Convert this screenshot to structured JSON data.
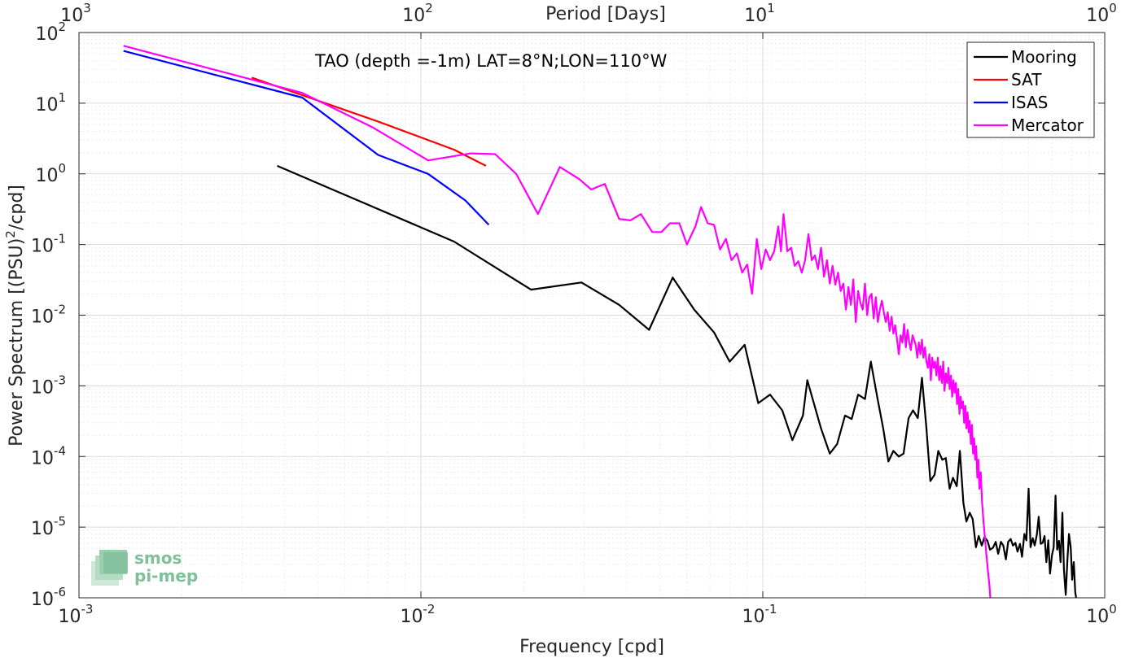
{
  "chart_data": {
    "type": "line",
    "title": "",
    "annotation": "TAO (depth =-1m) LAT=8°N;LON=110°W",
    "xlabel": "Frequency [cpd]",
    "ylabel_main": "Power Spectrum [(PSU)",
    "ylabel_sup": "2",
    "ylabel_tail": "/cpd]",
    "top_xlabel": "Period [Days]",
    "xscale": "log",
    "yscale": "log",
    "xlim": [
      0.001,
      1
    ],
    "ylim": [
      1e-06,
      100
    ],
    "grid": true,
    "legend_position": "top-right",
    "x_ticks": [
      {
        "value": 0.001,
        "base": "10",
        "exp": "-3"
      },
      {
        "value": 0.01,
        "base": "10",
        "exp": "-2"
      },
      {
        "value": 0.1,
        "base": "10",
        "exp": "-1"
      },
      {
        "value": 1,
        "base": "10",
        "exp": "0"
      }
    ],
    "y_ticks": [
      {
        "value": 1e-06,
        "base": "10",
        "exp": "-6"
      },
      {
        "value": 1e-05,
        "base": "10",
        "exp": "-5"
      },
      {
        "value": 0.0001,
        "base": "10",
        "exp": "-4"
      },
      {
        "value": 0.001,
        "base": "10",
        "exp": "-3"
      },
      {
        "value": 0.01,
        "base": "10",
        "exp": "-2"
      },
      {
        "value": 0.1,
        "base": "10",
        "exp": "-1"
      },
      {
        "value": 1,
        "base": "10",
        "exp": "0"
      },
      {
        "value": 10,
        "base": "10",
        "exp": "1"
      },
      {
        "value": 100,
        "base": "10",
        "exp": "2"
      }
    ],
    "top_ticks": [
      {
        "value": 0.001,
        "base": "10",
        "exp": "3"
      },
      {
        "value": 0.01,
        "base": "10",
        "exp": "2"
      },
      {
        "value": 0.1,
        "base": "10",
        "exp": "1"
      },
      {
        "value": 1,
        "base": "10",
        "exp": "0"
      }
    ],
    "series": [
      {
        "name": "Mooring",
        "color": "#000000",
        "points": [
          [
            0.0038,
            1.3
          ],
          [
            0.0125,
            0.11
          ],
          [
            0.021,
            0.023
          ],
          [
            0.0295,
            0.029
          ],
          [
            0.038,
            0.014
          ],
          [
            0.0465,
            0.0062
          ],
          [
            0.0545,
            0.034
          ],
          [
            0.063,
            0.012
          ],
          [
            0.072,
            0.0057
          ],
          [
            0.08,
            0.0022
          ],
          [
            0.0885,
            0.0038
          ],
          [
            0.097,
            0.00057
          ],
          [
            0.105,
            0.00075
          ],
          [
            0.114,
            0.00045
          ],
          [
            0.122,
            0.00017
          ],
          [
            0.131,
            0.00038
          ],
          [
            0.135,
            0.0012
          ],
          [
            0.148,
            0.00025
          ],
          [
            0.157,
            0.00011
          ],
          [
            0.165,
            0.00015
          ],
          [
            0.174,
            0.00038
          ],
          [
            0.182,
            0.00034
          ],
          [
            0.19,
            0.00075
          ],
          [
            0.199,
            0.00065
          ],
          [
            0.207,
            0.0022
          ],
          [
            0.216,
            0.0007
          ],
          [
            0.225,
            0.00025
          ],
          [
            0.233,
            8.5e-05
          ],
          [
            0.241,
            0.00012
          ],
          [
            0.25,
            0.0001
          ],
          [
            0.258,
            0.00011
          ],
          [
            0.267,
            0.00035
          ],
          [
            0.275,
            0.00045
          ],
          [
            0.284,
            0.00035
          ],
          [
            0.292,
            0.0013
          ],
          [
            0.301,
            0.00025
          ],
          [
            0.309,
            4.5e-05
          ],
          [
            0.318,
            5.5e-05
          ],
          [
            0.326,
            0.00012
          ],
          [
            0.335,
            9e-05
          ],
          [
            0.343,
            9.5e-05
          ],
          [
            0.352,
            3.5e-05
          ],
          [
            0.36,
            5e-05
          ],
          [
            0.369,
            3.8e-05
          ],
          [
            0.377,
            0.00012
          ],
          [
            0.386,
            2.2e-05
          ],
          [
            0.394,
            1.2e-05
          ],
          [
            0.403,
            1.6e-05
          ],
          [
            0.411,
            1.3e-05
          ],
          [
            0.42,
            5.2e-06
          ],
          [
            0.428,
            7.5e-06
          ],
          [
            0.437,
            5.5e-06
          ],
          [
            0.445,
            7.2e-06
          ],
          [
            0.454,
            6.4e-06
          ],
          [
            0.462,
            4.8e-06
          ],
          [
            0.471,
            5.1e-06
          ],
          [
            0.48,
            6.2e-06
          ],
          [
            0.488,
            4.2e-06
          ],
          [
            0.497,
            6.2e-06
          ],
          [
            0.505,
            5.5e-06
          ],
          [
            0.514,
            3.5e-06
          ],
          [
            0.522,
            6.2e-06
          ],
          [
            0.531,
            6.8e-06
          ],
          [
            0.539,
            5.5e-06
          ],
          [
            0.548,
            6e-06
          ],
          [
            0.556,
            4.5e-06
          ],
          [
            0.565,
            5.8e-06
          ],
          [
            0.573,
            3.8e-06
          ],
          [
            0.582,
            8e-06
          ],
          [
            0.59,
            6.5e-06
          ],
          [
            0.599,
            3.5e-05
          ],
          [
            0.607,
            5.2e-06
          ],
          [
            0.616,
            7e-06
          ],
          [
            0.624,
            5.5e-06
          ],
          [
            0.633,
            7.8e-06
          ],
          [
            0.641,
            1.4e-05
          ],
          [
            0.65,
            5.8e-06
          ],
          [
            0.658,
            6e-06
          ],
          [
            0.667,
            7.5e-06
          ],
          [
            0.675,
            3.2e-06
          ],
          [
            0.684,
            6.5e-06
          ],
          [
            0.692,
            2.2e-06
          ],
          [
            0.701,
            4e-06
          ],
          [
            0.709,
            5.2e-06
          ],
          [
            0.718,
            2.8e-05
          ],
          [
            0.726,
            4.8e-06
          ],
          [
            0.735,
            6.4e-06
          ],
          [
            0.743,
            3.2e-06
          ],
          [
            0.752,
            1.6e-05
          ],
          [
            0.76,
            2.5e-06
          ],
          [
            0.769,
            1.1e-06
          ],
          [
            0.778,
            3.5e-06
          ],
          [
            0.786,
            8e-06
          ],
          [
            0.795,
            5.2e-06
          ],
          [
            0.803,
            1.8e-06
          ],
          [
            0.812,
            3.2e-06
          ],
          [
            0.82,
            1.2e-06
          ],
          [
            0.825,
            1e-06
          ]
        ]
      },
      {
        "name": "SAT",
        "color": "#ff0000",
        "points": [
          [
            0.0032,
            23
          ],
          [
            0.0045,
            13
          ],
          [
            0.0075,
            5.5
          ],
          [
            0.0125,
            2.2
          ],
          [
            0.0155,
            1.3
          ]
        ]
      },
      {
        "name": "ISAS",
        "color": "#0000ff",
        "points": [
          [
            0.00135,
            55
          ],
          [
            0.0045,
            12
          ],
          [
            0.0075,
            1.85
          ],
          [
            0.0105,
            1.0
          ],
          [
            0.0135,
            0.42
          ],
          [
            0.0158,
            0.19
          ]
        ]
      },
      {
        "name": "Mercator",
        "color": "#ff00ff",
        "points": [
          [
            0.00135,
            65
          ],
          [
            0.0045,
            14
          ],
          [
            0.0072,
            4.6
          ],
          [
            0.0105,
            1.55
          ],
          [
            0.014,
            1.95
          ],
          [
            0.0165,
            1.9
          ],
          [
            0.019,
            1.0
          ],
          [
            0.022,
            0.27
          ],
          [
            0.0255,
            1.25
          ],
          [
            0.029,
            0.85
          ],
          [
            0.0315,
            0.6
          ],
          [
            0.0345,
            0.72
          ],
          [
            0.038,
            0.23
          ],
          [
            0.041,
            0.22
          ],
          [
            0.044,
            0.27
          ],
          [
            0.0475,
            0.15
          ],
          [
            0.0505,
            0.15
          ],
          [
            0.0535,
            0.2
          ],
          [
            0.057,
            0.2
          ],
          [
            0.06,
            0.1
          ],
          [
            0.0635,
            0.18
          ],
          [
            0.066,
            0.34
          ],
          [
            0.069,
            0.2
          ],
          [
            0.072,
            0.19
          ],
          [
            0.075,
            0.085
          ],
          [
            0.078,
            0.12
          ],
          [
            0.081,
            0.06
          ],
          [
            0.084,
            0.075
          ],
          [
            0.087,
            0.04
          ],
          [
            0.09,
            0.052
          ],
          [
            0.093,
            0.02
          ],
          [
            0.096,
            0.12
          ],
          [
            0.099,
            0.045
          ],
          [
            0.102,
            0.085
          ],
          [
            0.105,
            0.06
          ],
          [
            0.108,
            0.08
          ],
          [
            0.111,
            0.18
          ],
          [
            0.113,
            0.08
          ],
          [
            0.115,
            0.27
          ],
          [
            0.118,
            0.08
          ],
          [
            0.121,
            0.09
          ],
          [
            0.124,
            0.05
          ],
          [
            0.127,
            0.058
          ],
          [
            0.13,
            0.04
          ],
          [
            0.133,
            0.06
          ],
          [
            0.136,
            0.14
          ],
          [
            0.139,
            0.06
          ],
          [
            0.142,
            0.07
          ],
          [
            0.145,
            0.045
          ],
          [
            0.148,
            0.09
          ],
          [
            0.151,
            0.035
          ],
          [
            0.154,
            0.06
          ],
          [
            0.157,
            0.028
          ],
          [
            0.16,
            0.05
          ],
          [
            0.163,
            0.027
          ],
          [
            0.166,
            0.04
          ],
          [
            0.169,
            0.022
          ],
          [
            0.172,
            0.028
          ],
          [
            0.175,
            0.012
          ],
          [
            0.178,
            0.025
          ],
          [
            0.181,
            0.014
          ],
          [
            0.184,
            0.032
          ],
          [
            0.187,
            0.008
          ],
          [
            0.19,
            0.022
          ],
          [
            0.193,
            0.015
          ],
          [
            0.196,
            0.012
          ],
          [
            0.199,
            0.028
          ],
          [
            0.202,
            0.01
          ],
          [
            0.205,
            0.018
          ],
          [
            0.208,
            0.02
          ],
          [
            0.211,
            0.009
          ],
          [
            0.214,
            0.018
          ],
          [
            0.217,
            0.008
          ],
          [
            0.22,
            0.012
          ],
          [
            0.223,
            0.016
          ],
          [
            0.226,
            0.011
          ],
          [
            0.229,
            0.008
          ],
          [
            0.232,
            0.011
          ],
          [
            0.235,
            0.006
          ],
          [
            0.238,
            0.0095
          ],
          [
            0.241,
            0.0055
          ],
          [
            0.244,
            0.0072
          ],
          [
            0.247,
            0.0045
          ],
          [
            0.25,
            0.0028
          ],
          [
            0.253,
            0.0052
          ],
          [
            0.256,
            0.0041
          ],
          [
            0.259,
            0.0075
          ],
          [
            0.262,
            0.0035
          ],
          [
            0.265,
            0.0062
          ],
          [
            0.268,
            0.0042
          ],
          [
            0.271,
            0.0032
          ],
          [
            0.274,
            0.0052
          ],
          [
            0.277,
            0.0045
          ],
          [
            0.28,
            0.0038
          ],
          [
            0.283,
            0.0025
          ],
          [
            0.286,
            0.0041
          ],
          [
            0.289,
            0.0028
          ],
          [
            0.292,
            0.0045
          ],
          [
            0.295,
            0.0025
          ],
          [
            0.298,
            0.0035
          ],
          [
            0.301,
            0.0022
          ],
          [
            0.304,
            0.0018
          ],
          [
            0.307,
            0.0028
          ],
          [
            0.31,
            0.0012
          ],
          [
            0.313,
            0.0025
          ],
          [
            0.316,
            0.0018
          ],
          [
            0.319,
            0.0022
          ],
          [
            0.322,
            0.0014
          ],
          [
            0.325,
            0.0025
          ],
          [
            0.328,
            0.0012
          ],
          [
            0.331,
            0.0019
          ],
          [
            0.334,
            0.0011
          ],
          [
            0.337,
            0.0022
          ],
          [
            0.34,
            0.00085
          ],
          [
            0.343,
            0.0015
          ],
          [
            0.346,
            0.0011
          ],
          [
            0.349,
            0.0018
          ],
          [
            0.352,
            0.0009
          ],
          [
            0.355,
            0.0014
          ],
          [
            0.358,
            0.0007
          ],
          [
            0.361,
            0.0012
          ],
          [
            0.364,
            0.0008
          ],
          [
            0.367,
            0.0011
          ],
          [
            0.37,
            0.00055
          ],
          [
            0.373,
            0.0009
          ],
          [
            0.376,
            0.0004
          ],
          [
            0.379,
            0.0007
          ],
          [
            0.382,
            0.00048
          ],
          [
            0.385,
            0.0006
          ],
          [
            0.388,
            0.0003
          ],
          [
            0.391,
            0.00052
          ],
          [
            0.394,
            0.00025
          ],
          [
            0.397,
            0.00042
          ],
          [
            0.4,
            0.00022
          ],
          [
            0.403,
            0.00032
          ],
          [
            0.406,
            0.00015
          ],
          [
            0.409,
            0.00028
          ],
          [
            0.412,
            0.00011
          ],
          [
            0.415,
            0.00018
          ],
          [
            0.418,
            9e-05
          ],
          [
            0.421,
            0.00014
          ],
          [
            0.424,
            5e-05
          ],
          [
            0.427,
            9e-05
          ],
          [
            0.43,
            3.5e-05
          ],
          [
            0.434,
            6e-05
          ],
          [
            0.438,
            2.2e-05
          ],
          [
            0.442,
            1.2e-05
          ],
          [
            0.446,
            7.5e-06
          ],
          [
            0.45,
            4.5e-06
          ],
          [
            0.455,
            2.5e-06
          ],
          [
            0.46,
            1.5e-06
          ],
          [
            0.463,
            1e-06
          ]
        ]
      }
    ]
  },
  "legend": {
    "items": [
      "Mooring",
      "SAT",
      "ISAS",
      "Mercator"
    ]
  },
  "logo": {
    "line1": "smos",
    "line2": "pi-mep"
  }
}
